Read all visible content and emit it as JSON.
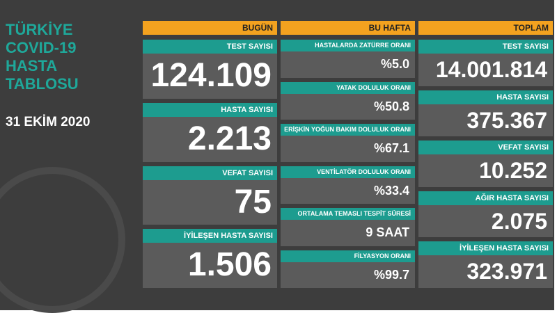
{
  "header": {
    "title_lines": [
      "TÜRKİYE",
      "COVID-19",
      "HASTA",
      "TABLOSU"
    ],
    "date": "31 EKİM 2020"
  },
  "columns": [
    {
      "header": "BUGÜN",
      "items": [
        {
          "label": "TEST SAYISI",
          "value": "124.109"
        },
        {
          "label": "HASTA SAYISI",
          "value": "2.213"
        },
        {
          "label": "VEFAT SAYISI",
          "value": "75"
        },
        {
          "label": "İYİLEŞEN HASTA SAYISI",
          "value": "1.506"
        }
      ]
    },
    {
      "header": "BU HAFTA",
      "items": [
        {
          "label": "HASTALARDA ZATÜRRE ORANI",
          "value": "%5.0"
        },
        {
          "label": "YATAK DOLULUK ORANI",
          "value": "%50.8"
        },
        {
          "label": "ERİŞKİN YOĞUN BAKIM DOLULUK ORANI",
          "value": "%67.1"
        },
        {
          "label": "VENTİLATÖR DOLULUK ORANI",
          "value": "%33.4"
        },
        {
          "label": "ORTALAMA TEMASLI TESPİT SÜRESİ",
          "value": "9 SAAT"
        },
        {
          "label": "FİLYASYON ORANI",
          "value": "%99.7"
        }
      ]
    },
    {
      "header": "TOPLAM",
      "items": [
        {
          "label": "TEST SAYISI",
          "value": "14.001.814"
        },
        {
          "label": "HASTA SAYISI",
          "value": "375.367"
        },
        {
          "label": "VEFAT SAYISI",
          "value": "10.252"
        },
        {
          "label": "AĞIR HASTA SAYISI",
          "value": "2.075"
        },
        {
          "label": "İYİLEŞEN HASTA SAYISI",
          "value": "323.971"
        }
      ]
    }
  ]
}
